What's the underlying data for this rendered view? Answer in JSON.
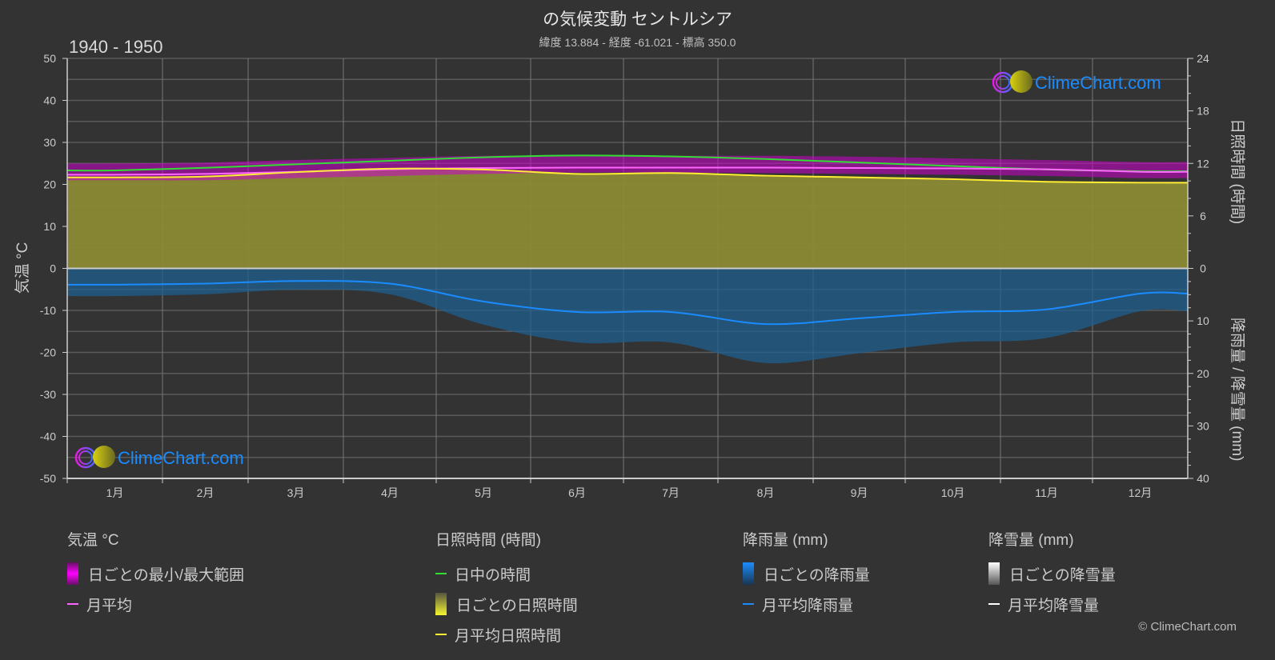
{
  "header": {
    "title": "の気候変動 セントルシア",
    "subtitle": "緯度 13.884 - 経度 -61.021 - 標高 350.0",
    "period": "1940 - 1950"
  },
  "axes": {
    "left_title": "気温 °C",
    "right_top_title": "日照時間 (時間)",
    "right_bottom_title": "降雨量 / 降雪量 (mm)",
    "left_ticks": [
      "50",
      "40",
      "30",
      "20",
      "10",
      "0",
      "-10",
      "-20",
      "-30",
      "-40",
      "-50"
    ],
    "right_top_ticks": [
      "24",
      "18",
      "12",
      "6",
      "0"
    ],
    "right_bottom_ticks": [
      "10",
      "20",
      "30",
      "40"
    ],
    "months": [
      "1月",
      "2月",
      "3月",
      "4月",
      "5月",
      "6月",
      "7月",
      "8月",
      "9月",
      "10月",
      "11月",
      "12月"
    ]
  },
  "watermark": {
    "text": "ClimeChart.com",
    "copyright": "© ClimeChart.com"
  },
  "legend": {
    "temperature": {
      "title": "気温 °C",
      "items": [
        "日ごとの最小/最大範囲",
        "月平均"
      ]
    },
    "sunshine": {
      "title": "日照時間 (時間)",
      "items": [
        "日中の時間",
        "日ごとの日照時間",
        "月平均日照時間"
      ]
    },
    "rain": {
      "title": "降雨量 (mm)",
      "items": [
        "日ごとの降雨量",
        "月平均降雨量"
      ]
    },
    "snow": {
      "title": "降雪量 (mm)",
      "items": [
        "日ごとの降雪量",
        "月平均降雪量"
      ]
    }
  },
  "colors": {
    "background": "#333333",
    "grid": "#5a5a5a",
    "temp_range": "#cc00cc",
    "temp_mean": "#ff66ff",
    "daylight": "#33dd33",
    "sunshine_fill": "#8a8a35",
    "sunshine_mean": "#ffee33",
    "rain_fill": "#1f5f8f",
    "rain_mean": "#1a8cff",
    "snow_mean": "#ffffff",
    "logo_text": "#1a8cff"
  },
  "chart_data": {
    "type": "line",
    "title": "の気候変動 セントルシア",
    "subtitle": "緯度 13.884 - 経度 -61.021 - 標高 350.0",
    "period": "1940 - 1950",
    "categories": [
      "1月",
      "2月",
      "3月",
      "4月",
      "5月",
      "6月",
      "7月",
      "8月",
      "9月",
      "10月",
      "11月",
      "12月"
    ],
    "ylabel_left": "気温 °C",
    "ylim_left": [
      -50,
      50
    ],
    "ylabel_right_top": "日照時間 (時間)",
    "ylim_right_top": [
      0,
      24
    ],
    "ylabel_right_bottom": "降雨量 / 降雪量 (mm)",
    "ylim_right_bottom": [
      0,
      40
    ],
    "grid": true,
    "series": [
      {
        "name": "月平均",
        "axis": "temperature_c",
        "values": [
          22.3,
          22.5,
          23.0,
          23.6,
          23.9,
          24.0,
          24.0,
          24.0,
          23.9,
          23.8,
          23.6,
          23.0
        ]
      },
      {
        "name": "日ごとの最小/最大範囲 (min)",
        "axis": "temperature_c",
        "values": [
          21.0,
          21.0,
          21.5,
          22.0,
          22.5,
          22.8,
          22.8,
          22.7,
          22.5,
          22.3,
          22.0,
          21.5
        ]
      },
      {
        "name": "日ごとの最小/最大範囲 (max)",
        "axis": "temperature_c",
        "values": [
          25.0,
          25.2,
          25.8,
          26.3,
          26.8,
          26.8,
          26.8,
          26.8,
          26.6,
          26.2,
          25.8,
          25.3
        ]
      },
      {
        "name": "日中の時間",
        "axis": "sunshine_h",
        "values": [
          11.2,
          11.5,
          11.9,
          12.3,
          12.7,
          12.9,
          12.8,
          12.5,
          12.1,
          11.7,
          11.3,
          11.1
        ]
      },
      {
        "name": "月平均日照時間",
        "axis": "sunshine_h",
        "values": [
          10.4,
          10.5,
          11.0,
          11.4,
          11.3,
          10.8,
          10.9,
          10.6,
          10.4,
          10.2,
          9.9,
          9.8
        ]
      },
      {
        "name": "月平均降雨量",
        "axis": "precip_mm",
        "values": [
          3.1,
          2.9,
          2.4,
          2.9,
          6.3,
          8.3,
          8.3,
          10.6,
          9.5,
          8.3,
          7.8,
          4.8
        ]
      },
      {
        "name": "月平均降雪量",
        "axis": "precip_mm",
        "values": [
          0,
          0,
          0,
          0,
          0,
          0,
          0,
          0,
          0,
          0,
          0,
          0
        ]
      }
    ],
    "legend_position": "bottom"
  }
}
